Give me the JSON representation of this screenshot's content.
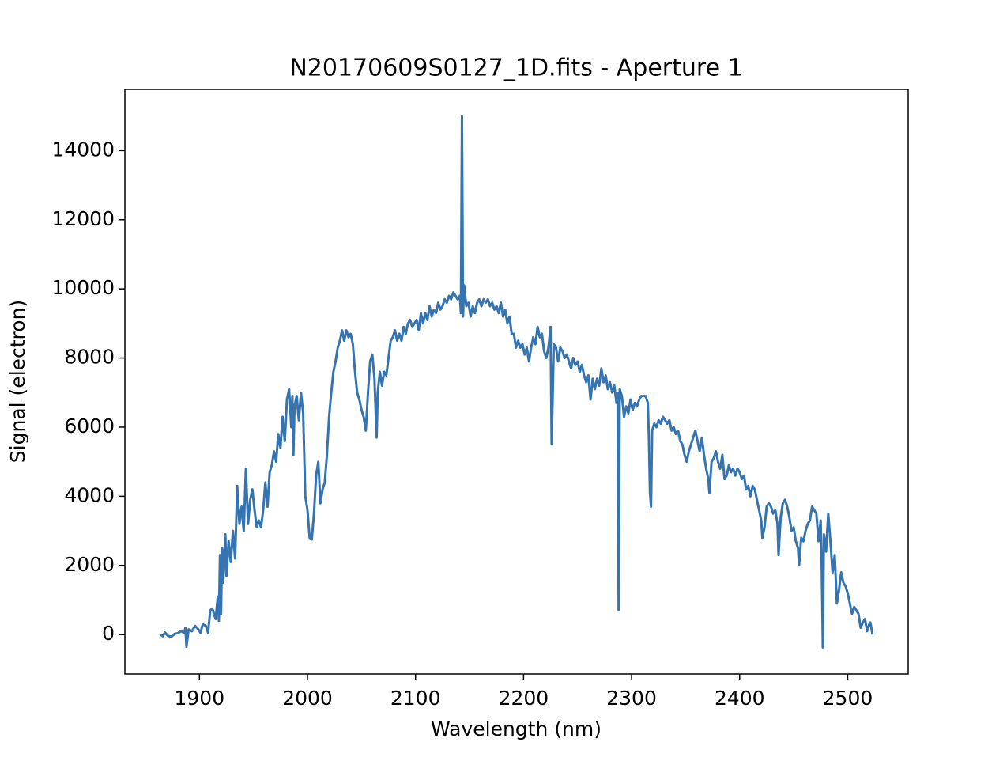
{
  "chart_data": {
    "type": "line",
    "title": "N20170609S0127_1D.fits - Aperture 1",
    "x_label": "Wavelength (nm)",
    "y_label": "Signal (electron)",
    "color": "#3674b0",
    "xlim": [
      1831,
      2556
    ],
    "ylim": [
      -1140,
      15770
    ],
    "xticks": [
      1900,
      2000,
      2100,
      2200,
      2300,
      2400,
      2500
    ],
    "yticks": [
      0,
      2000,
      4000,
      6000,
      8000,
      10000,
      12000,
      14000
    ],
    "x": [
      1864,
      1866,
      1868,
      1871,
      1874,
      1877,
      1880,
      1883,
      1886,
      1887,
      1888,
      1890,
      1893,
      1896,
      1899,
      1901,
      1903,
      1906,
      1908,
      1910,
      1912,
      1915,
      1917,
      1918,
      1919,
      1920,
      1921,
      1922,
      1924,
      1925,
      1927,
      1929,
      1931,
      1933,
      1935,
      1937,
      1939,
      1941,
      1943,
      1945,
      1947,
      1949,
      1951,
      1953,
      1955,
      1957,
      1959,
      1961,
      1963,
      1965,
      1967,
      1969,
      1971,
      1973,
      1975,
      1977,
      1979,
      1981,
      1983,
      1985,
      1986,
      1987,
      1988,
      1990,
      1992,
      1994,
      1996,
      1998,
      2000,
      2002,
      2004,
      2006,
      2008,
      2010,
      2012,
      2014,
      2016,
      2018,
      2020,
      2022,
      2024,
      2026,
      2028,
      2030,
      2032,
      2034,
      2036,
      2038,
      2040,
      2042,
      2044,
      2046,
      2048,
      2050,
      2052,
      2054,
      2056,
      2058,
      2060,
      2062,
      2064,
      2065,
      2067,
      2069,
      2071,
      2073,
      2075,
      2077,
      2079,
      2081,
      2083,
      2085,
      2087,
      2089,
      2091,
      2093,
      2095,
      2097,
      2099,
      2101,
      2103,
      2105,
      2107,
      2109,
      2111,
      2113,
      2115,
      2117,
      2119,
      2121,
      2123,
      2125,
      2127,
      2129,
      2131,
      2133,
      2135,
      2137,
      2139,
      2141,
      2142,
      2143,
      2144,
      2145,
      2147,
      2149,
      2151,
      2153,
      2155,
      2157,
      2159,
      2161,
      2163,
      2165,
      2167,
      2169,
      2171,
      2173,
      2175,
      2177,
      2179,
      2181,
      2183,
      2185,
      2187,
      2189,
      2191,
      2193,
      2195,
      2197,
      2199,
      2201,
      2203,
      2205,
      2207,
      2209,
      2211,
      2213,
      2215,
      2217,
      2219,
      2221,
      2223,
      2225,
      2226,
      2228,
      2230,
      2232,
      2234,
      2236,
      2238,
      2240,
      2242,
      2244,
      2246,
      2248,
      2250,
      2252,
      2254,
      2256,
      2258,
      2260,
      2262,
      2264,
      2266,
      2268,
      2270,
      2272,
      2274,
      2276,
      2278,
      2280,
      2282,
      2284,
      2286,
      2287,
      2288,
      2289,
      2291,
      2293,
      2295,
      2297,
      2299,
      2301,
      2303,
      2305,
      2307,
      2309,
      2311,
      2313,
      2315,
      2316,
      2317,
      2318,
      2319,
      2321,
      2323,
      2325,
      2327,
      2329,
      2331,
      2333,
      2335,
      2337,
      2339,
      2341,
      2343,
      2345,
      2347,
      2349,
      2351,
      2353,
      2355,
      2357,
      2359,
      2361,
      2363,
      2365,
      2367,
      2369,
      2371,
      2372,
      2374,
      2376,
      2378,
      2380,
      2382,
      2384,
      2386,
      2388,
      2390,
      2392,
      2394,
      2396,
      2398,
      2400,
      2402,
      2404,
      2406,
      2408,
      2410,
      2412,
      2414,
      2416,
      2418,
      2420,
      2421,
      2423,
      2425,
      2427,
      2429,
      2431,
      2433,
      2435,
      2436,
      2438,
      2440,
      2442,
      2444,
      2446,
      2448,
      2450,
      2452,
      2454,
      2455,
      2457,
      2459,
      2461,
      2463,
      2465,
      2467,
      2469,
      2471,
      2473,
      2475,
      2476,
      2477,
      2478,
      2480,
      2482,
      2484,
      2486,
      2488,
      2490,
      2492,
      2494,
      2496,
      2498,
      2500,
      2502,
      2504,
      2506,
      2508,
      2510,
      2512,
      2514,
      2516,
      2518,
      2520,
      2521,
      2523
    ],
    "values": [
      0,
      -50,
      60,
      -40,
      -60,
      20,
      40,
      100,
      50,
      200,
      -350,
      150,
      100,
      250,
      150,
      50,
      300,
      250,
      50,
      700,
      750,
      450,
      1100,
      400,
      2300,
      600,
      2500,
      1500,
      2900,
      1700,
      2700,
      2100,
      3000,
      2200,
      4300,
      3200,
      3700,
      3000,
      4800,
      3200,
      3900,
      4200,
      3600,
      3100,
      3300,
      3100,
      3600,
      4400,
      3700,
      4700,
      4900,
      5300,
      5000,
      5800,
      5400,
      6300,
      5600,
      6800,
      7100,
      6000,
      6900,
      5200,
      6600,
      6900,
      6200,
      7000,
      6400,
      4000,
      3600,
      2800,
      2750,
      3500,
      4600,
      5000,
      3800,
      4200,
      4400,
      5200,
      6300,
      7000,
      7600,
      7900,
      8300,
      8500,
      8800,
      8500,
      8800,
      8600,
      8700,
      8400,
      7600,
      7000,
      6800,
      6500,
      6300,
      5900,
      7000,
      7900,
      8100,
      7400,
      5700,
      7000,
      7600,
      7200,
      7600,
      7500,
      8000,
      8500,
      8600,
      8800,
      8500,
      8700,
      8500,
      8900,
      8700,
      9000,
      9100,
      8900,
      9000,
      9100,
      8800,
      9300,
      9000,
      9300,
      9100,
      9500,
      9200,
      9400,
      9300,
      9600,
      9400,
      9500,
      9700,
      9600,
      9800,
      9700,
      9900,
      9800,
      9700,
      9800,
      9300,
      15000,
      9200,
      10100,
      9500,
      9600,
      9200,
      9500,
      9300,
      9600,
      9700,
      9500,
      9700,
      9600,
      9700,
      9500,
      9600,
      9400,
      9500,
      9300,
      9600,
      9200,
      9400,
      9000,
      9200,
      8700,
      8700,
      8300,
      8500,
      8300,
      8400,
      8100,
      8300,
      7900,
      8300,
      8600,
      8400,
      8900,
      8600,
      8700,
      8200,
      8000,
      8300,
      8900,
      5500,
      8400,
      8300,
      7900,
      8300,
      8200,
      8000,
      8100,
      7900,
      7700,
      8000,
      7800,
      7900,
      7600,
      7800,
      7500,
      7300,
      7500,
      6800,
      7400,
      7100,
      7400,
      7200,
      7700,
      7300,
      7500,
      7100,
      7300,
      7000,
      7200,
      6700,
      7000,
      700,
      7100,
      6900,
      6300,
      6600,
      6400,
      6800,
      6500,
      6700,
      6600,
      6800,
      6900,
      6900,
      6900,
      6700,
      5700,
      4100,
      3700,
      5900,
      6100,
      6000,
      6200,
      6100,
      6300,
      6200,
      6100,
      6200,
      5900,
      6000,
      5800,
      5900,
      5600,
      5500,
      5200,
      5000,
      5300,
      5500,
      5700,
      5900,
      5600,
      5300,
      5700,
      5200,
      4800,
      4500,
      4100,
      5000,
      5100,
      5300,
      5000,
      4800,
      5200,
      4500,
      4600,
      4900,
      4700,
      4800,
      4600,
      4800,
      4700,
      4500,
      4600,
      4200,
      4300,
      4000,
      4300,
      4200,
      3900,
      3600,
      3300,
      2800,
      3100,
      3700,
      3800,
      3700,
      3500,
      3600,
      3200,
      2300,
      3400,
      3800,
      3900,
      3700,
      3400,
      3000,
      3100,
      2700,
      2500,
      2000,
      2800,
      2700,
      3000,
      3200,
      3300,
      3700,
      3600,
      3500,
      2700,
      3300,
      1900,
      -370,
      2900,
      2400,
      3500,
      2700,
      1800,
      2300,
      900,
      1300,
      1800,
      1500,
      1400,
      1200,
      900,
      600,
      800,
      700,
      600,
      200,
      350,
      450,
      100,
      300,
      350,
      0
    ]
  }
}
